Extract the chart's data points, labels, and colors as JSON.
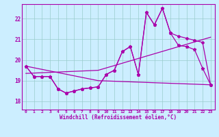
{
  "xlabel": "Windchill (Refroidissement éolien,°C)",
  "bg_color": "#cceeff",
  "line_color": "#aa00aa",
  "grid_color": "#99cccc",
  "xticks": [
    0,
    1,
    2,
    3,
    4,
    5,
    6,
    7,
    8,
    9,
    10,
    11,
    12,
    13,
    14,
    15,
    16,
    17,
    18,
    19,
    20,
    21,
    22,
    23
  ],
  "yticks": [
    18,
    19,
    20,
    21,
    22
  ],
  "ylim": [
    17.6,
    22.7
  ],
  "xlim": [
    -0.5,
    23.5
  ],
  "series1_x": [
    0,
    1,
    2,
    3,
    4,
    5,
    6,
    7,
    8,
    9,
    10,
    11,
    12,
    13,
    14,
    15,
    16,
    17,
    18,
    19,
    20,
    21,
    22,
    23
  ],
  "series1_y": [
    19.7,
    19.2,
    19.2,
    19.2,
    18.6,
    18.4,
    18.5,
    18.6,
    18.65,
    18.7,
    19.3,
    19.5,
    20.4,
    20.65,
    19.3,
    22.3,
    21.7,
    22.5,
    21.3,
    20.7,
    20.65,
    20.5,
    19.6,
    18.8
  ],
  "series2_x": [
    0,
    1,
    2,
    3,
    4,
    5,
    6,
    7,
    8,
    9,
    10,
    11,
    12,
    13,
    14,
    15,
    16,
    17,
    18,
    19,
    20,
    21,
    22,
    23
  ],
  "series2_y": [
    19.7,
    19.2,
    19.2,
    19.2,
    18.6,
    18.4,
    18.5,
    18.6,
    18.65,
    18.7,
    19.3,
    19.5,
    20.4,
    20.65,
    19.3,
    22.3,
    21.7,
    22.5,
    21.3,
    21.15,
    21.05,
    20.95,
    20.85,
    18.8
  ],
  "series3_x": [
    0,
    9,
    23
  ],
  "series3_y": [
    19.35,
    19.5,
    21.1
  ],
  "series4_x": [
    0,
    9,
    23
  ],
  "series4_y": [
    19.7,
    19.0,
    18.8
  ]
}
